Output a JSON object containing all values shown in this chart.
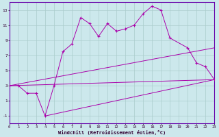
{
  "xlabel": "Windchill (Refroidissement éolien,°C)",
  "bg_color": "#cce8ec",
  "grid_color": "#aacccc",
  "line_color": "#aa00aa",
  "border_color": "#6600aa",
  "xlim": [
    0,
    23
  ],
  "ylim": [
    -2,
    14
  ],
  "xticks": [
    0,
    1,
    2,
    3,
    4,
    5,
    6,
    7,
    8,
    9,
    10,
    11,
    12,
    13,
    14,
    15,
    16,
    17,
    18,
    19,
    20,
    21,
    22,
    23
  ],
  "yticks": [
    -1,
    1,
    3,
    5,
    7,
    9,
    11,
    13
  ],
  "series1_x": [
    0,
    1,
    2,
    3,
    4,
    5,
    6,
    7,
    8,
    9,
    10,
    11,
    12,
    13,
    14,
    15,
    16,
    17,
    18,
    20,
    21,
    22,
    23
  ],
  "series1_y": [
    3.0,
    3.0,
    2.0,
    2.0,
    -1.0,
    3.0,
    7.5,
    8.5,
    12.0,
    11.2,
    9.5,
    11.2,
    10.2,
    10.5,
    11.0,
    12.5,
    13.5,
    13.0,
    9.3,
    8.0,
    6.0,
    5.5,
    3.8
  ],
  "series2_x": [
    0,
    23
  ],
  "series2_y": [
    3.0,
    8.0
  ],
  "series3_x": [
    0,
    23
  ],
  "series3_y": [
    3.0,
    3.8
  ],
  "series4_x": [
    4,
    23
  ],
  "series4_y": [
    -1.0,
    3.8
  ],
  "marker": "+"
}
